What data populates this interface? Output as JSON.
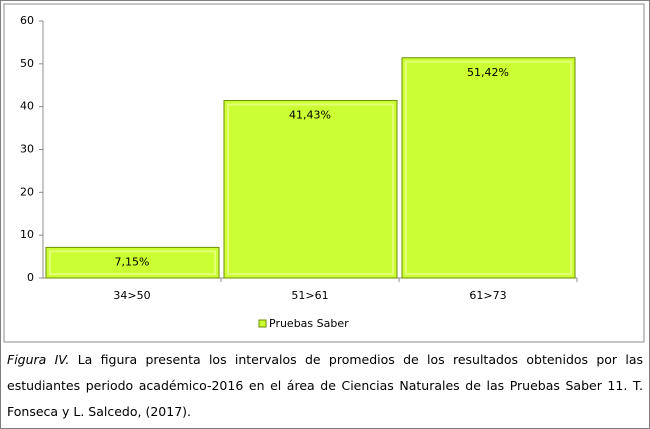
{
  "chart_data": {
    "type": "bar",
    "categories": [
      "34>50",
      "51>61",
      "61>73"
    ],
    "series": [
      {
        "name": "Pruebas Saber",
        "color": "#ccff33",
        "values": [
          7.15,
          41.43,
          51.42
        ],
        "value_labels": [
          "7,15%",
          "41,43%",
          "51,42%"
        ]
      }
    ],
    "ylim": [
      0,
      60
    ],
    "yticks": [
      0,
      10,
      20,
      30,
      40,
      50,
      60
    ],
    "grid": false,
    "legend": "bottom",
    "caption_label": "Figura IV.",
    "caption": "La figura presenta los intervalos de promedios de los resultados obtenidos por las estudiantes periodo académico-2016 en el área de Ciencias Naturales de las Pruebas Saber 11. T. Fonseca y L. Salcedo, (2017)."
  }
}
